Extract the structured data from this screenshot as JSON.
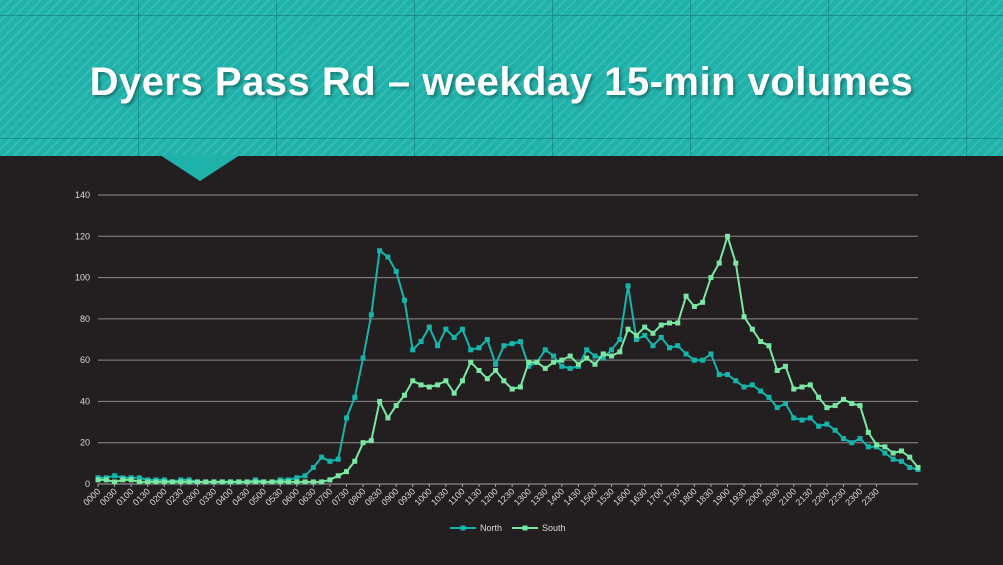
{
  "slide": {
    "title": "Dyers Pass Rd – weekday 15-min volumes"
  },
  "colors": {
    "banner": "#1fb2aa",
    "background": "#231f20",
    "north": "#16b5ac",
    "south": "#7ae8a2",
    "grid": "#8c8c8c",
    "text": "#d9d9d9"
  },
  "chart_data": {
    "type": "line",
    "title": "",
    "xlabel": "",
    "ylabel": "",
    "ylim": [
      0,
      140
    ],
    "yticks": [
      0,
      20,
      40,
      60,
      80,
      100,
      120,
      140
    ],
    "grid": true,
    "legend_position": "bottom",
    "x_tick_labels": [
      "0000",
      "0030",
      "0100",
      "0130",
      "0200",
      "0230",
      "0300",
      "0330",
      "0400",
      "0430",
      "0500",
      "0530",
      "0600",
      "0630",
      "0700",
      "0730",
      "0800",
      "0830",
      "0900",
      "0930",
      "1000",
      "1030",
      "1100",
      "1130",
      "1200",
      "1230",
      "1300",
      "1330",
      "1400",
      "1430",
      "1500",
      "1530",
      "1600",
      "1630",
      "1700",
      "1730",
      "1800",
      "1830",
      "1900",
      "1930",
      "2000",
      "2030",
      "2100",
      "2130",
      "2200",
      "2230",
      "2300",
      "2330"
    ],
    "series": [
      {
        "name": "North",
        "color": "#16b5ac",
        "values": [
          3,
          3,
          4,
          3,
          3,
          3,
          2,
          2,
          2,
          1,
          2,
          2,
          1,
          1,
          1,
          1,
          1,
          1,
          1,
          2,
          1,
          1,
          2,
          2,
          3,
          4,
          8,
          13,
          11,
          12,
          32,
          42,
          61,
          82,
          113,
          110,
          103,
          89,
          65,
          69,
          76,
          67,
          75,
          71,
          75,
          65,
          66,
          70,
          58,
          67,
          68,
          69,
          57,
          59,
          65,
          62,
          57,
          56,
          57,
          65,
          62,
          61,
          65,
          70,
          96,
          70,
          72,
          67,
          71,
          66,
          67,
          63,
          60,
          60,
          63,
          53,
          53,
          50,
          47,
          48,
          45,
          42,
          37,
          39,
          32,
          31,
          32,
          28,
          29,
          26,
          22,
          20,
          22,
          18,
          18,
          15,
          12,
          11,
          8,
          7
        ]
      },
      {
        "name": "South",
        "color": "#7ae8a2",
        "values": [
          2,
          2,
          1,
          2,
          2,
          1,
          1,
          1,
          1,
          1,
          1,
          1,
          1,
          1,
          1,
          1,
          1,
          1,
          1,
          1,
          1,
          1,
          1,
          1,
          1,
          1,
          1,
          1,
          2,
          4,
          6,
          11,
          20,
          21,
          40,
          32,
          38,
          43,
          50,
          48,
          47,
          48,
          50,
          44,
          50,
          59,
          55,
          51,
          55,
          50,
          46,
          47,
          59,
          59,
          56,
          59,
          60,
          62,
          58,
          61,
          58,
          63,
          62,
          64,
          75,
          72,
          76,
          73,
          77,
          78,
          78,
          91,
          86,
          88,
          100,
          107,
          120,
          107,
          81,
          75,
          69,
          67,
          55,
          57,
          46,
          47,
          48,
          42,
          37,
          38,
          41,
          39,
          38,
          25,
          19,
          18,
          15,
          16,
          13,
          8
        ]
      }
    ]
  },
  "legend": [
    {
      "label": "North"
    },
    {
      "label": "South"
    }
  ]
}
